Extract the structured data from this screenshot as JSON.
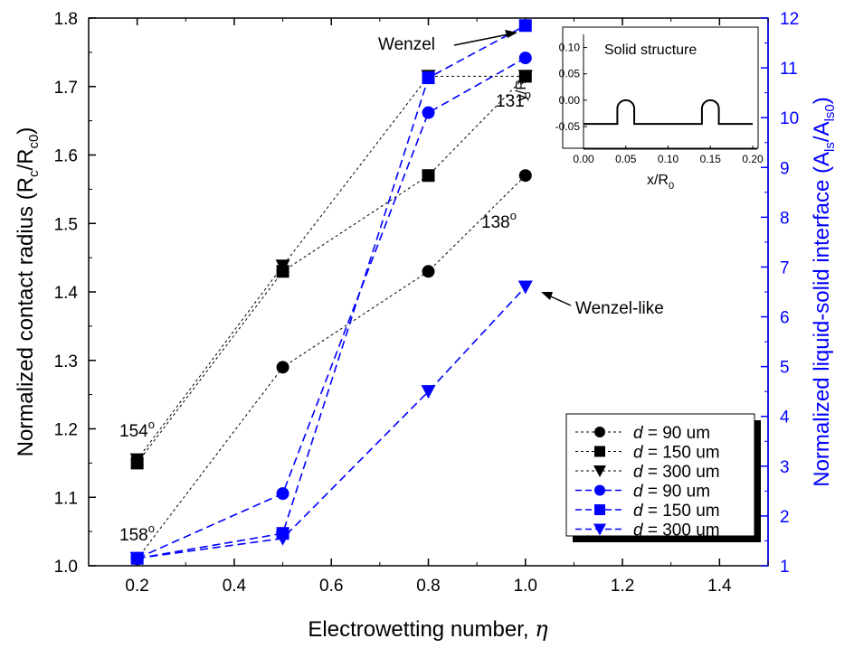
{
  "chart_data": {
    "type": "line",
    "xlabel": "Electrowetting number, ",
    "xlabel_symbol": "η",
    "ylabel_left": {
      "main": "Normalized contact radius (R",
      "sub1": "c",
      "mid": "/R",
      "sub2": "c0",
      "end": ")"
    },
    "ylabel_right": {
      "main": "Normalized liquid-solid interface (A",
      "sub1": "ls",
      "mid": "/A",
      "sub2": "ls0",
      "end": ")"
    },
    "xlim": [
      0.1,
      1.5
    ],
    "xticks": [
      "0.2",
      "0.4",
      "0.6",
      "0.8",
      "1.0",
      "1.2",
      "1.4"
    ],
    "xtick_values": [
      0.2,
      0.4,
      0.6,
      0.8,
      1.0,
      1.2,
      1.4
    ],
    "ylim_left": [
      1.0,
      1.8
    ],
    "yticks_left": [
      "1.0",
      "1.1",
      "1.2",
      "1.3",
      "1.4",
      "1.5",
      "1.6",
      "1.7",
      "1.8"
    ],
    "ytick_left_values": [
      1.0,
      1.1,
      1.2,
      1.3,
      1.4,
      1.5,
      1.6,
      1.7,
      1.8
    ],
    "ylim_right": [
      1,
      12
    ],
    "yticks_right": [
      "1",
      "2",
      "3",
      "4",
      "5",
      "6",
      "7",
      "8",
      "9",
      "10",
      "11",
      "12"
    ],
    "ytick_right_values": [
      1,
      2,
      3,
      4,
      5,
      6,
      7,
      8,
      9,
      10,
      11,
      12
    ],
    "colors": {
      "black": "#000000",
      "blue": "#0000ff"
    },
    "series": [
      {
        "name": "= 90 um",
        "d_label": "d",
        "axis": "left",
        "color": "#000000",
        "marker": "circle",
        "dash": "short",
        "x": [
          0.2,
          0.5,
          0.8,
          1.0
        ],
        "y": [
          1.01,
          1.29,
          1.43,
          1.57
        ]
      },
      {
        "name": "= 150 um",
        "d_label": "d",
        "axis": "left",
        "color": "#000000",
        "marker": "square",
        "dash": "short",
        "x": [
          0.2,
          0.5,
          0.8,
          1.0
        ],
        "y": [
          1.15,
          1.43,
          1.57,
          1.715
        ]
      },
      {
        "name": "= 300 um",
        "d_label": "d",
        "axis": "left",
        "color": "#000000",
        "marker": "triangle-down",
        "dash": "short",
        "x": [
          0.2,
          0.5,
          0.8,
          1.0
        ],
        "y": [
          1.155,
          1.438,
          1.715,
          1.715
        ]
      },
      {
        "name": "= 90 um",
        "d_label": "d",
        "axis": "right",
        "color": "#0000ff",
        "marker": "circle",
        "dash": "long",
        "x": [
          0.2,
          0.5,
          0.8,
          1.0
        ],
        "y": [
          1.15,
          2.45,
          10.1,
          11.2
        ]
      },
      {
        "name": "= 150 um",
        "d_label": "d",
        "axis": "right",
        "color": "#0000ff",
        "marker": "square",
        "dash": "long",
        "x": [
          0.2,
          0.5,
          0.8,
          1.0
        ],
        "y": [
          1.15,
          1.65,
          10.8,
          11.85
        ]
      },
      {
        "name": "= 300 um",
        "d_label": "d",
        "axis": "right",
        "color": "#0000ff",
        "marker": "triangle-down",
        "dash": "long",
        "x": [
          0.2,
          0.5,
          0.8,
          1.0
        ],
        "y": [
          1.15,
          1.55,
          4.5,
          6.6
        ]
      }
    ],
    "annotations": {
      "a154": {
        "num": "154",
        "deg": "o"
      },
      "a158": {
        "num": "158",
        "deg": "o"
      },
      "a131": {
        "num": "131",
        "deg": "o"
      },
      "a138": {
        "num": "138",
        "deg": "o"
      },
      "wenzel": "Wenzel",
      "wenzel_like": "Wenzel-like"
    },
    "legend_position": "bottom-right",
    "inset": {
      "title": "Solid structure",
      "xlabel": {
        "main": "x/R",
        "sub": "0"
      },
      "ylabel": {
        "main": "y/R",
        "sub": "0"
      },
      "xlim": [
        0.0,
        0.2
      ],
      "ylim": [
        -0.05,
        0.125
      ],
      "xticks": [
        "0.00",
        "0.05",
        "0.10",
        "0.15",
        "0.20"
      ],
      "xtick_values": [
        0.0,
        0.05,
        0.1,
        0.15,
        0.2
      ],
      "yticks": [
        "-0.05",
        "0.00",
        "0.05",
        "0.10"
      ],
      "ytick_values": [
        -0.05,
        0.0,
        0.05,
        0.1
      ]
    }
  }
}
